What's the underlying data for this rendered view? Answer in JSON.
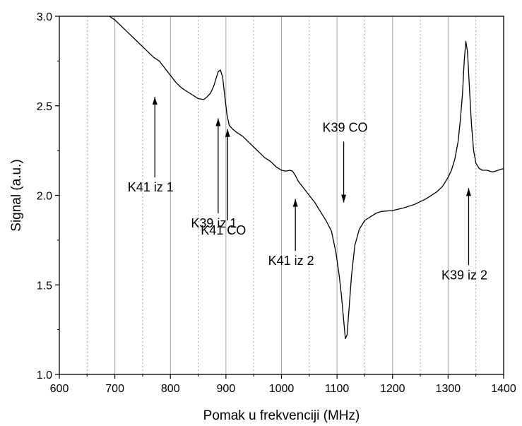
{
  "chart_data": {
    "type": "line",
    "title": "",
    "xlabel": "Pomak u frekvenciji (MHz)",
    "ylabel": "Signal (a.u.)",
    "xlim": [
      600,
      1400
    ],
    "ylim": [
      1.0,
      3.0
    ],
    "x_ticks": [
      600,
      700,
      800,
      900,
      1000,
      1100,
      1200,
      1300,
      1400
    ],
    "x_tick_labels": [
      "600",
      "700",
      "800",
      "900",
      "1000",
      "1100",
      "1200",
      "1300",
      "1400"
    ],
    "y_ticks": [
      1.0,
      1.5,
      2.0,
      2.5,
      3.0
    ],
    "y_tick_labels": [
      "1.0",
      "1.5",
      "2.0",
      "2.5",
      "3.0"
    ],
    "grid": {
      "major_x": [
        700,
        800,
        900,
        1000,
        1100,
        1200,
        1300
      ],
      "minor_x": [
        650,
        750,
        850,
        950,
        1050,
        1150,
        1250,
        1350
      ],
      "color": "#9a9a9a"
    },
    "line_color": "#000000",
    "series": [
      {
        "x": [
          690,
          700,
          720,
          740,
          760,
          770,
          780,
          790,
          800,
          810,
          820,
          830,
          840,
          850,
          860,
          866,
          872,
          878,
          882,
          886,
          890,
          894,
          898,
          902,
          906,
          912,
          920,
          930,
          940,
          950,
          960,
          970,
          980,
          990,
          1000,
          1008,
          1015,
          1020,
          1025,
          1030,
          1035,
          1040,
          1050,
          1060,
          1070,
          1080,
          1090,
          1098,
          1104,
          1108,
          1112,
          1115,
          1118,
          1122,
          1126,
          1132,
          1140,
          1150,
          1160,
          1170,
          1180,
          1200,
          1220,
          1240,
          1260,
          1280,
          1290,
          1300,
          1306,
          1312,
          1318,
          1322,
          1326,
          1329,
          1332,
          1335,
          1338,
          1342,
          1346,
          1350,
          1356,
          1362,
          1370,
          1380,
          1390,
          1400
        ],
        "y": [
          3.0,
          2.98,
          2.92,
          2.86,
          2.8,
          2.77,
          2.75,
          2.71,
          2.67,
          2.63,
          2.6,
          2.58,
          2.56,
          2.54,
          2.535,
          2.55,
          2.57,
          2.61,
          2.65,
          2.69,
          2.7,
          2.66,
          2.55,
          2.45,
          2.39,
          2.37,
          2.35,
          2.33,
          2.3,
          2.27,
          2.24,
          2.21,
          2.19,
          2.16,
          2.14,
          2.135,
          2.14,
          2.135,
          2.11,
          2.08,
          2.06,
          2.04,
          2.0,
          1.96,
          1.91,
          1.86,
          1.8,
          1.68,
          1.55,
          1.44,
          1.3,
          1.2,
          1.22,
          1.38,
          1.55,
          1.72,
          1.81,
          1.86,
          1.88,
          1.9,
          1.91,
          1.915,
          1.93,
          1.95,
          1.98,
          2.02,
          2.05,
          2.1,
          2.14,
          2.2,
          2.3,
          2.42,
          2.57,
          2.75,
          2.86,
          2.8,
          2.62,
          2.4,
          2.25,
          2.18,
          2.15,
          2.14,
          2.14,
          2.13,
          2.14,
          2.15
        ]
      }
    ],
    "annotations": [
      {
        "text": "K41 iz 1",
        "arrow_x": 772,
        "arrow_from": 2.1,
        "arrow_to": 2.55,
        "direction": "up"
      },
      {
        "text": "K39 iz 1",
        "arrow_x": 886,
        "arrow_from": 1.9,
        "arrow_to": 2.43,
        "direction": "up"
      },
      {
        "text": "K41 CO",
        "arrow_x": 903,
        "arrow_from": 1.86,
        "arrow_to": 2.37,
        "direction": "up"
      },
      {
        "text": "K41 iz 2",
        "arrow_x": 1025,
        "arrow_from": 1.69,
        "arrow_to": 1.98,
        "direction": "up"
      },
      {
        "text": "K39 CO",
        "arrow_x": 1112,
        "arrow_from": 2.3,
        "arrow_to": 1.96,
        "direction": "down"
      },
      {
        "text": "K39 iz 2",
        "arrow_x": 1337,
        "arrow_from": 1.61,
        "arrow_to": 2.04,
        "direction": "up"
      }
    ]
  }
}
